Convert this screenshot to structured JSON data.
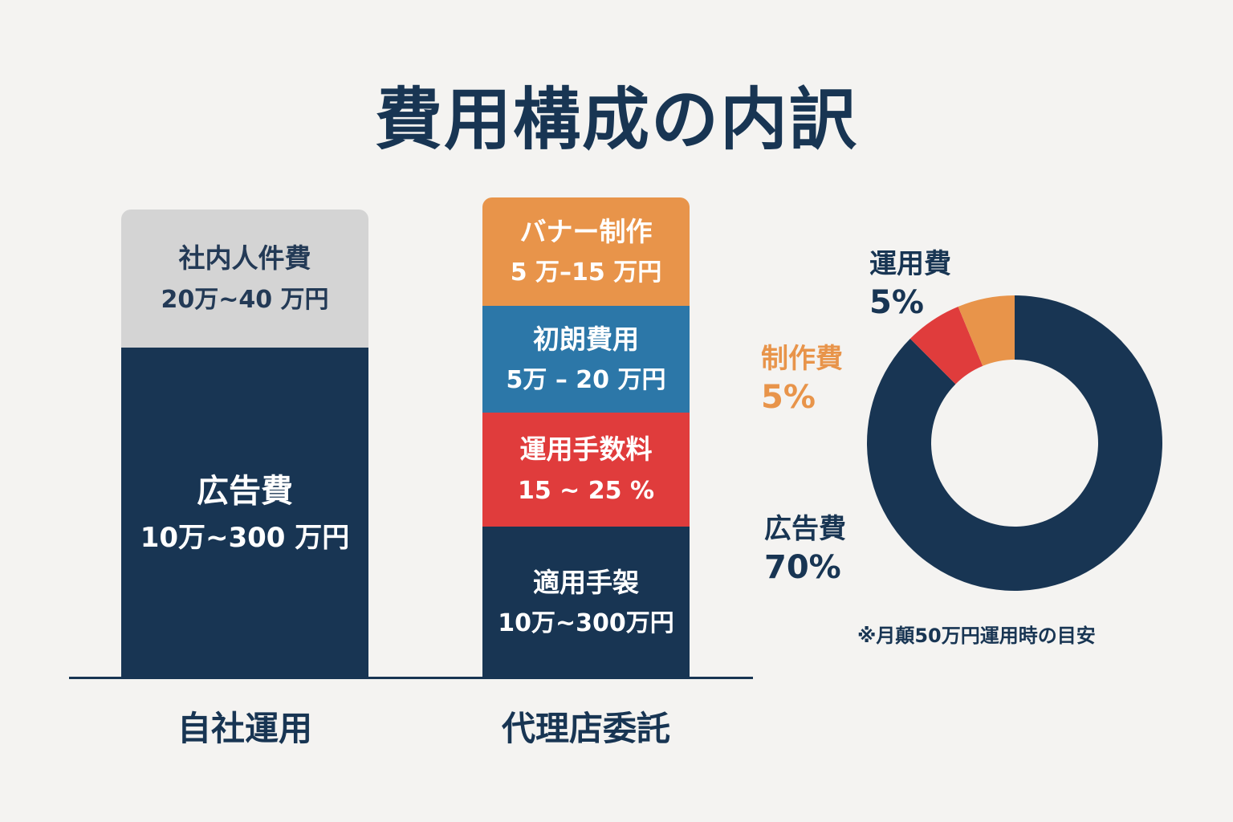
{
  "title": "費用構成の内訳",
  "colors": {
    "navy": "#183553",
    "gray": "#d4d4d4",
    "orange": "#e8944a",
    "blue": "#2c77a8",
    "red": "#e03c3c",
    "background": "#f4f3f1"
  },
  "chart_data": [
    {
      "type": "bar",
      "stacked": true,
      "categories": [
        "自社運用",
        "代理店委託"
      ],
      "stacks": [
        {
          "category": "自社運用",
          "segments": [
            {
              "name": "広告費",
              "range": "10万~300 万円",
              "color": "#183553"
            },
            {
              "name": "社内人件費",
              "range": "20万~40 万円",
              "color": "#d4d4d4"
            }
          ]
        },
        {
          "category": "代理店委託",
          "segments": [
            {
              "name": "適用手袈",
              "range": "10万~300万円",
              "color": "#183553"
            },
            {
              "name": "運用手数料",
              "range": "15 ~ 25 %",
              "color": "#e03c3c"
            },
            {
              "name": "初朗費用",
              "range": "5万 – 20 万円",
              "color": "#2c77a8"
            },
            {
              "name": "バナー制作",
              "range": "5 万–15 万円",
              "color": "#e8944a"
            }
          ]
        }
      ]
    },
    {
      "type": "pie",
      "donut": true,
      "slices": [
        {
          "name": "広告費",
          "value": 70,
          "label": "70%",
          "color": "#183553"
        },
        {
          "name": "制作費",
          "value": 5,
          "label": "5%",
          "color": "#e03c3c"
        },
        {
          "name": "運用費",
          "value": 5,
          "label": "5%",
          "color": "#e8944a"
        }
      ],
      "note": "※月顛50万円運用時の目安"
    }
  ]
}
